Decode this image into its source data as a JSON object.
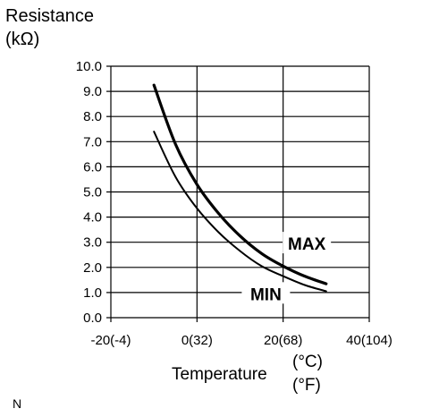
{
  "chart_data": {
    "type": "line",
    "ylabel_line1": "Resistance",
    "ylabel_line2": "(kΩ)",
    "xlabel": "Temperature",
    "x_unit_c": "(°C)",
    "x_unit_f": "(°F)",
    "xlim": [
      -20,
      40
    ],
    "ylim": [
      0,
      10
    ],
    "grid": true,
    "x_ticks": [
      {
        "value": -20,
        "label": "-20(-4)"
      },
      {
        "value": 0,
        "label": "0(32)"
      },
      {
        "value": 20,
        "label": "20(68)"
      },
      {
        "value": 40,
        "label": "40(104)"
      }
    ],
    "y_ticks": [
      {
        "value": 0,
        "label": "0.0"
      },
      {
        "value": 1,
        "label": "1.0"
      },
      {
        "value": 2,
        "label": "2.0"
      },
      {
        "value": 3,
        "label": "3.0"
      },
      {
        "value": 4,
        "label": "4.0"
      },
      {
        "value": 5,
        "label": "5.0"
      },
      {
        "value": 6,
        "label": "6.0"
      },
      {
        "value": 7,
        "label": "7.0"
      },
      {
        "value": 8,
        "label": "8.0"
      },
      {
        "value": 9,
        "label": "9.0"
      },
      {
        "value": 10,
        "label": "10.0"
      }
    ],
    "series": [
      {
        "name": "MAX",
        "label_anchor": {
          "x": 25.5,
          "y": 2.95
        },
        "points": [
          [
            -10,
            9.25
          ],
          [
            -5,
            6.9
          ],
          [
            0,
            5.3
          ],
          [
            5,
            4.15
          ],
          [
            10,
            3.25
          ],
          [
            15,
            2.55
          ],
          [
            20,
            2.05
          ],
          [
            25,
            1.65
          ],
          [
            30,
            1.35
          ]
        ]
      },
      {
        "name": "MIN",
        "label_anchor": {
          "x": 16,
          "y": 0.95
        },
        "points": [
          [
            -10,
            7.4
          ],
          [
            -5,
            5.6
          ],
          [
            0,
            4.35
          ],
          [
            5,
            3.4
          ],
          [
            10,
            2.65
          ],
          [
            15,
            2.05
          ],
          [
            20,
            1.65
          ],
          [
            25,
            1.3
          ],
          [
            30,
            1.05
          ]
        ]
      }
    ]
  },
  "footnote": "N"
}
